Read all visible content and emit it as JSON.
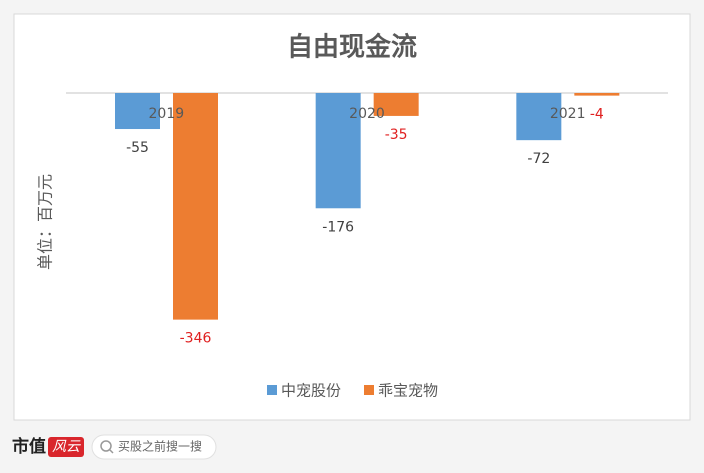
{
  "chart_data": {
    "type": "bar",
    "title": "自由现金流",
    "y_label": "单位：百万元",
    "categories": [
      "2019",
      "2020",
      "2021"
    ],
    "series": [
      {
        "name": "中宠股份",
        "color": "#5b9bd5",
        "label_color": "#404040",
        "values": [
          -55,
          -176,
          -72
        ]
      },
      {
        "name": "乖宝宠物",
        "color": "#ed7d31",
        "label_color": "#e02020",
        "values": [
          -346,
          -35,
          -4
        ]
      }
    ],
    "ylim": [
      -400,
      0
    ],
    "grid": false
  },
  "footer": {
    "brand": "市值",
    "brand_logo": "风云",
    "search": "买股之前搜一搜"
  }
}
